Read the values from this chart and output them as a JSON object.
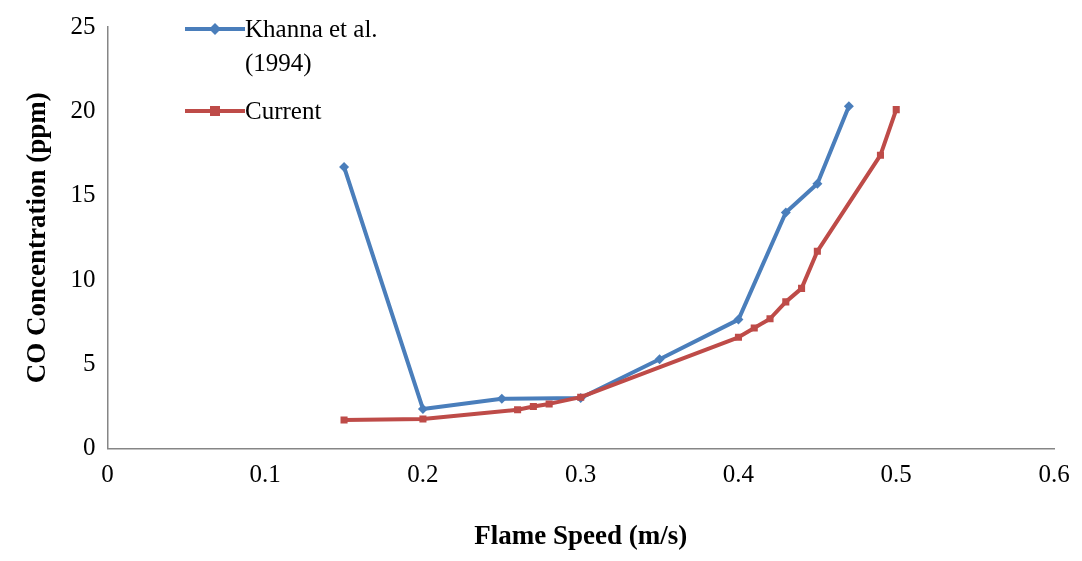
{
  "chart_data": {
    "type": "line",
    "xlabel": "Flame Speed (m/s)",
    "ylabel": "CO Concentration (ppm)",
    "xlim": [
      0,
      0.6
    ],
    "xticks": [
      0,
      0.1,
      0.2,
      0.3,
      0.4,
      0.5,
      0.6
    ],
    "ylim": [
      0,
      25
    ],
    "yticks": [
      0,
      5,
      10,
      15,
      20,
      25
    ],
    "grid": false,
    "legend": "top left",
    "line_style": "solid",
    "series": [
      {
        "name": "Khanna et al. (1994)",
        "color": "#4a7ebb",
        "marker": "diamond",
        "x": [
          0.15,
          0.2,
          0.25,
          0.3,
          0.35,
          0.4,
          0.43,
          0.45,
          0.47
        ],
        "values": [
          16.7,
          2.35,
          2.95,
          3.0,
          5.3,
          7.65,
          14.0,
          15.7,
          20.3
        ]
      },
      {
        "name": "Current",
        "color": "#be4b48",
        "marker": "square",
        "x": [
          0.15,
          0.2,
          0.26,
          0.27,
          0.28,
          0.3,
          0.4,
          0.41,
          0.42,
          0.43,
          0.44,
          0.45,
          0.49,
          0.5
        ],
        "values": [
          1.7,
          1.75,
          2.3,
          2.5,
          2.65,
          3.05,
          6.6,
          7.15,
          7.7,
          8.7,
          9.5,
          11.7,
          17.4,
          20.1
        ]
      }
    ]
  }
}
